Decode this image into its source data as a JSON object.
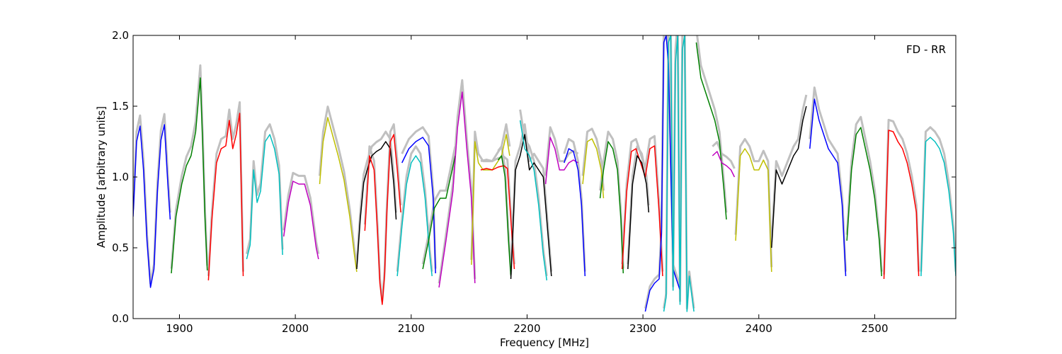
{
  "chart_data": {
    "type": "line",
    "title": "",
    "annotation": "FD - RR",
    "xlabel": "Frequency [MHz]",
    "ylabel": "Amplitude [arbitrary units]",
    "xlim": [
      1860,
      2570
    ],
    "ylim": [
      0.0,
      2.0
    ],
    "grid": false,
    "x_ticks": [
      1900,
      2000,
      2100,
      2200,
      2300,
      2400,
      2500
    ],
    "x_tick_labels": [
      "1900",
      "2000",
      "2100",
      "2200",
      "2300",
      "2400",
      "2500"
    ],
    "y_ticks": [
      0.0,
      0.5,
      1.0,
      1.5,
      2.0
    ],
    "y_tick_labels": [
      "0.0",
      "0.5",
      "1.0",
      "1.5",
      "2.0"
    ],
    "background_color": "#c0c0c0",
    "series": [
      {
        "color": "#0000ff",
        "x": [
          1860,
          1863,
          1866,
          1869,
          1872,
          1875,
          1878,
          1881,
          1884,
          1887,
          1890,
          1892
        ],
        "y": [
          0.72,
          1.25,
          1.36,
          1.05,
          0.55,
          0.22,
          0.35,
          0.9,
          1.26,
          1.37,
          0.95,
          0.7
        ]
      },
      {
        "color": "#008000",
        "x": [
          1893,
          1897,
          1902,
          1906,
          1910,
          1914,
          1918,
          1920,
          1922,
          1924
        ],
        "y": [
          0.32,
          0.72,
          0.95,
          1.08,
          1.15,
          1.32,
          1.7,
          1.25,
          0.72,
          0.34
        ]
      },
      {
        "color": "#ff0000",
        "x": [
          1925,
          1928,
          1932,
          1936,
          1940,
          1943,
          1946,
          1949,
          1952,
          1955
        ],
        "y": [
          0.27,
          0.7,
          1.1,
          1.2,
          1.22,
          1.4,
          1.2,
          1.3,
          1.45,
          0.3
        ]
      },
      {
        "color": "#00bfbf",
        "x": [
          1958,
          1961,
          1964,
          1967,
          1970,
          1974,
          1978,
          1982,
          1986,
          1989
        ],
        "y": [
          0.42,
          0.52,
          1.05,
          0.82,
          0.9,
          1.25,
          1.3,
          1.2,
          1.02,
          0.45
        ]
      },
      {
        "color": "#bf00bf",
        "x": [
          1990,
          1994,
          1998,
          2003,
          2008,
          2013,
          2018,
          2020
        ],
        "y": [
          0.58,
          0.82,
          0.97,
          0.95,
          0.95,
          0.8,
          0.5,
          0.42
        ]
      },
      {
        "color": "#bfbf00",
        "x": [
          2021,
          2024,
          2028,
          2032,
          2037,
          2042,
          2047,
          2051,
          2053
        ],
        "y": [
          0.95,
          1.25,
          1.42,
          1.3,
          1.15,
          0.98,
          0.72,
          0.45,
          0.33
        ]
      },
      {
        "color": "#000000",
        "x": [
          2053,
          2056,
          2059,
          2062,
          2066,
          2070,
          2074,
          2078,
          2082,
          2085,
          2087
        ],
        "y": [
          0.35,
          0.7,
          0.96,
          1.05,
          1.15,
          1.18,
          1.2,
          1.25,
          1.2,
          0.95,
          0.7
        ]
      },
      {
        "color": "#ff0000",
        "x": [
          2060,
          2064,
          2068,
          2071,
          2073,
          2075,
          2077,
          2079,
          2082,
          2085,
          2088,
          2091
        ],
        "y": [
          0.62,
          1.15,
          1.05,
          0.6,
          0.25,
          0.1,
          0.3,
          0.75,
          1.25,
          1.3,
          1.05,
          0.75
        ]
      },
      {
        "color": "#00bfbf",
        "x": [
          2088,
          2092,
          2096,
          2100,
          2104,
          2108,
          2112,
          2116,
          2118
        ],
        "y": [
          0.3,
          0.65,
          0.95,
          1.1,
          1.15,
          1.1,
          0.85,
          0.45,
          0.3
        ]
      },
      {
        "color": "#0000ff",
        "x": [
          2092,
          2098,
          2104,
          2110,
          2115,
          2119,
          2121
        ],
        "y": [
          1.1,
          1.2,
          1.25,
          1.28,
          1.22,
          0.85,
          0.32
        ]
      },
      {
        "color": "#008000",
        "x": [
          2110,
          2115,
          2120,
          2125,
          2130,
          2134,
          2138
        ],
        "y": [
          0.35,
          0.55,
          0.78,
          0.85,
          0.85,
          1.0,
          1.15
        ]
      },
      {
        "color": "#bf00bf",
        "x": [
          2124,
          2130,
          2136,
          2140,
          2144,
          2148,
          2152,
          2155
        ],
        "y": [
          0.22,
          0.55,
          0.9,
          1.35,
          1.6,
          1.2,
          0.85,
          0.25
        ]
      },
      {
        "color": "#bfbf00",
        "x": [
          2152,
          2155,
          2158,
          2162,
          2166,
          2170,
          2174,
          2178,
          2182,
          2185
        ],
        "y": [
          0.38,
          1.25,
          1.1,
          1.05,
          1.05,
          1.05,
          1.1,
          1.15,
          1.3,
          1.15
        ]
      },
      {
        "color": "#ff0000",
        "x": [
          2160,
          2165,
          2170,
          2175,
          2180,
          2183,
          2186,
          2189
        ],
        "y": [
          1.05,
          1.06,
          1.05,
          1.07,
          1.08,
          1.06,
          0.7,
          0.35
        ]
      },
      {
        "color": "#008000",
        "x": [
          2175,
          2178,
          2181,
          2184,
          2186
        ],
        "y": [
          1.12,
          1.15,
          1.0,
          0.55,
          0.3
        ]
      },
      {
        "color": "#000000",
        "x": [
          2186,
          2190,
          2194,
          2198,
          2202,
          2206,
          2210,
          2214,
          2218,
          2221
        ],
        "y": [
          0.28,
          1.05,
          1.15,
          1.3,
          1.05,
          1.1,
          1.05,
          1.0,
          0.6,
          0.3
        ]
      },
      {
        "color": "#00bfbf",
        "x": [
          2194,
          2198,
          2202,
          2206,
          2210,
          2214,
          2217
        ],
        "y": [
          1.4,
          1.2,
          1.15,
          1.05,
          0.8,
          0.45,
          0.27
        ]
      },
      {
        "color": "#bf00bf",
        "x": [
          2216,
          2220,
          2224,
          2228,
          2232,
          2236,
          2240,
          2244
        ],
        "y": [
          0.95,
          1.28,
          1.2,
          1.05,
          1.05,
          1.1,
          1.12,
          1.1
        ]
      },
      {
        "color": "#0000ff",
        "x": [
          2232,
          2236,
          2240,
          2244,
          2247,
          2250
        ],
        "y": [
          1.1,
          1.2,
          1.18,
          1.05,
          0.8,
          0.3
        ]
      },
      {
        "color": "#bfbf00",
        "x": [
          2248,
          2252,
          2256,
          2260,
          2264,
          2266
        ],
        "y": [
          0.95,
          1.25,
          1.27,
          1.2,
          1.05,
          0.85
        ]
      },
      {
        "color": "#008000",
        "x": [
          2263,
          2266,
          2270,
          2274,
          2278,
          2281,
          2283
        ],
        "y": [
          0.85,
          1.05,
          1.25,
          1.2,
          1.05,
          0.7,
          0.32
        ]
      },
      {
        "color": "#ff0000",
        "x": [
          2282,
          2286,
          2290,
          2294,
          2298,
          2302,
          2306,
          2310,
          2314,
          2317
        ],
        "y": [
          0.35,
          0.9,
          1.18,
          1.2,
          1.1,
          1.0,
          1.2,
          1.22,
          0.75,
          0.3
        ]
      },
      {
        "color": "#000000",
        "x": [
          2287,
          2291,
          2295,
          2299,
          2303,
          2305
        ],
        "y": [
          0.35,
          0.95,
          1.15,
          1.1,
          0.95,
          0.75
        ]
      },
      {
        "color": "#0000ff",
        "x": [
          2302,
          2306,
          2310,
          2314,
          2316,
          2318,
          2320,
          2322,
          2326,
          2332
        ],
        "y": [
          0.05,
          0.2,
          0.25,
          0.28,
          0.6,
          1.95,
          2.0,
          1.8,
          0.35,
          0.2
        ]
      },
      {
        "color": "#00bfbf",
        "x": [
          2318,
          2320,
          2322,
          2324,
          2326,
          2328,
          2330,
          2332,
          2334,
          2336,
          2338,
          2340,
          2344
        ],
        "y": [
          0.05,
          0.15,
          1.95,
          2.0,
          0.2,
          1.8,
          2.0,
          0.1,
          1.9,
          2.0,
          0.05,
          0.3,
          0.05
        ]
      },
      {
        "color": "#008000",
        "x": [
          2346,
          2350,
          2354,
          2358,
          2362,
          2366,
          2370,
          2372
        ],
        "y": [
          1.95,
          1.7,
          1.6,
          1.5,
          1.4,
          1.25,
          0.9,
          0.7
        ]
      },
      {
        "color": "#bf00bf",
        "x": [
          2360,
          2364,
          2368,
          2372,
          2376,
          2379
        ],
        "y": [
          1.15,
          1.18,
          1.1,
          1.08,
          1.05,
          1.0
        ]
      },
      {
        "color": "#bfbf00",
        "x": [
          2380,
          2384,
          2388,
          2392,
          2396,
          2400,
          2404,
          2408,
          2411
        ],
        "y": [
          0.55,
          1.15,
          1.2,
          1.15,
          1.05,
          1.05,
          1.12,
          1.05,
          0.33
        ]
      },
      {
        "color": "#000000",
        "x": [
          2411,
          2415,
          2420,
          2425,
          2430,
          2434,
          2438,
          2441
        ],
        "y": [
          0.5,
          1.05,
          0.95,
          1.05,
          1.15,
          1.2,
          1.4,
          1.5
        ]
      },
      {
        "color": "#0000ff",
        "x": [
          2444,
          2448,
          2452,
          2456,
          2460,
          2464,
          2468,
          2472,
          2475
        ],
        "y": [
          1.2,
          1.55,
          1.4,
          1.3,
          1.2,
          1.15,
          1.1,
          0.8,
          0.3
        ]
      },
      {
        "color": "#008000",
        "x": [
          2476,
          2480,
          2484,
          2488,
          2492,
          2496,
          2500,
          2504,
          2506
        ],
        "y": [
          0.55,
          1.05,
          1.3,
          1.35,
          1.2,
          1.05,
          0.85,
          0.55,
          0.3
        ]
      },
      {
        "color": "#ff0000",
        "x": [
          2508,
          2512,
          2516,
          2520,
          2524,
          2528,
          2532,
          2536,
          2538
        ],
        "y": [
          0.28,
          1.33,
          1.32,
          1.25,
          1.2,
          1.1,
          0.95,
          0.75,
          0.3
        ]
      },
      {
        "color": "#00bfbf",
        "x": [
          2540,
          2544,
          2548,
          2552,
          2556,
          2560,
          2564,
          2568,
          2570
        ],
        "y": [
          0.3,
          1.25,
          1.28,
          1.25,
          1.2,
          1.1,
          0.9,
          0.6,
          0.3
        ]
      }
    ]
  }
}
